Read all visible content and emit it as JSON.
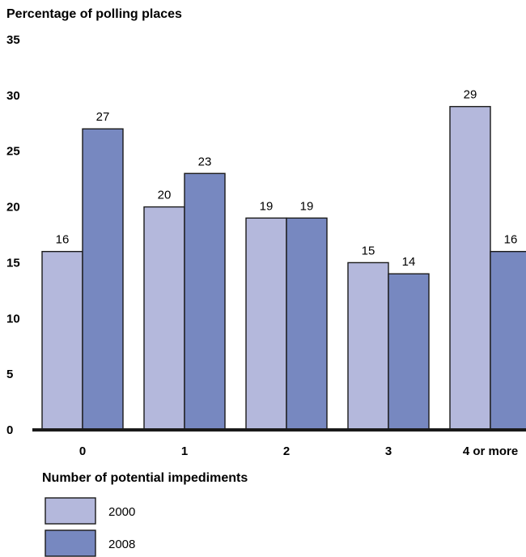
{
  "chart_data": {
    "type": "bar",
    "ylabel": "Percentage of polling places",
    "xlabel": "Number of potential impediments",
    "categories": [
      "0",
      "1",
      "2",
      "3",
      "4 or more"
    ],
    "yticks": [
      0,
      5,
      10,
      15,
      20,
      25,
      30,
      35
    ],
    "ylim": [
      0,
      35
    ],
    "grid": false,
    "legend_position": "bottom-left",
    "series": [
      {
        "name": "2000",
        "color": "#b4b8dc",
        "values": [
          16,
          20,
          19,
          15,
          29
        ]
      },
      {
        "name": "2008",
        "color": "#7788c0",
        "values": [
          27,
          23,
          19,
          14,
          16
        ]
      }
    ]
  }
}
